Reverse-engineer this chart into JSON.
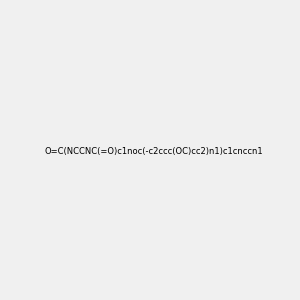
{
  "smiles": "O=C(NCCNC(=O)c1noc(-c2ccc(OC)cc2)n1)c1cnccn1",
  "image_size": 300,
  "background_color": "#f0f0f0"
}
